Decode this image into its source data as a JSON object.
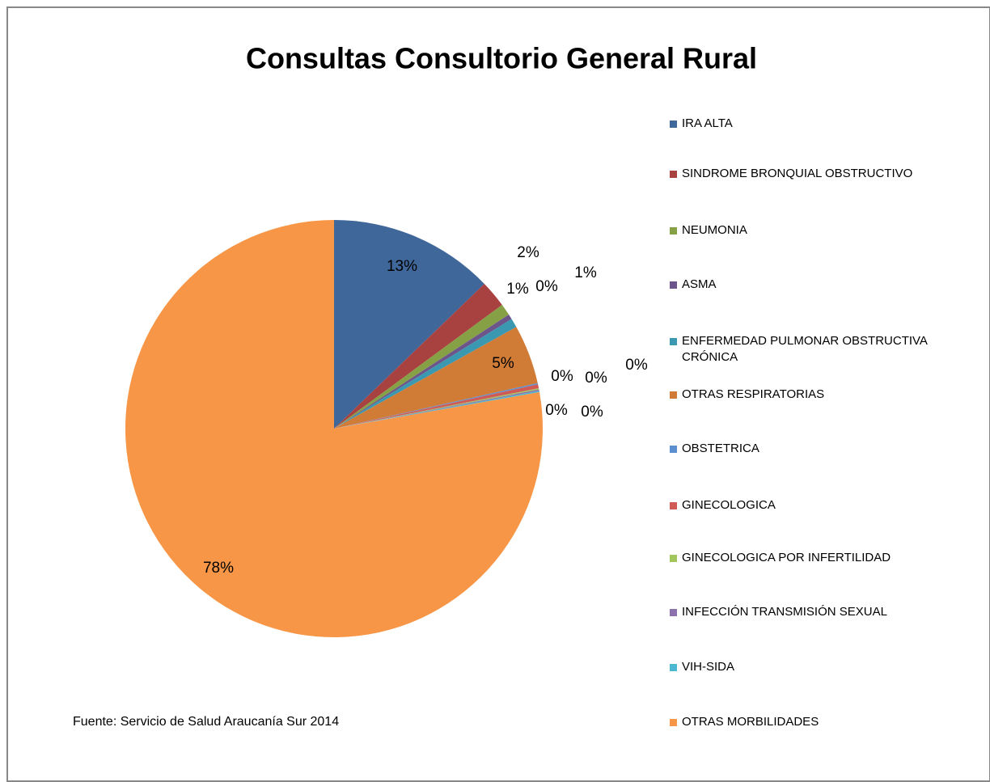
{
  "chart_data": {
    "type": "pie",
    "title": "Consultas Consultorio General Rural",
    "source": "Fuente: Servicio de Salud Araucanía Sur 2014",
    "categories": [
      "IRA ALTA",
      "SINDROME BRONQUIAL OBSTRUCTIVO",
      "NEUMONIA",
      "ASMA",
      "ENFERMEDAD PULMONAR OBSTRUCTIVA CRÓNICA",
      "OTRAS RESPIRATORIAS",
      "OBSTETRICA",
      "GINECOLOGICA",
      "GINECOLOGICA POR INFERTILIDAD",
      "INFECCIÓN TRANSMISIÓN SEXUAL",
      "VIH-SIDA",
      "OTRAS MORBILIDADES"
    ],
    "values": [
      12.8,
      2.1,
      0.9,
      0.4,
      0.7,
      4.6,
      0.1,
      0.3,
      0.1,
      0.1,
      0.1,
      77.8
    ],
    "value_labels": [
      "13%",
      "2%",
      "1%",
      "0%",
      "1%",
      "5%",
      "0%",
      "0%",
      "0%",
      "0%",
      "0%",
      "78%"
    ],
    "colors": [
      "#3f679a",
      "#a84240",
      "#86a046",
      "#6b558a",
      "#3a99b0",
      "#d07b36",
      "#5b8fd0",
      "#d05a55",
      "#a2c65c",
      "#8b72ad",
      "#4bb7d0",
      "#f79646"
    ],
    "legend": "right"
  }
}
